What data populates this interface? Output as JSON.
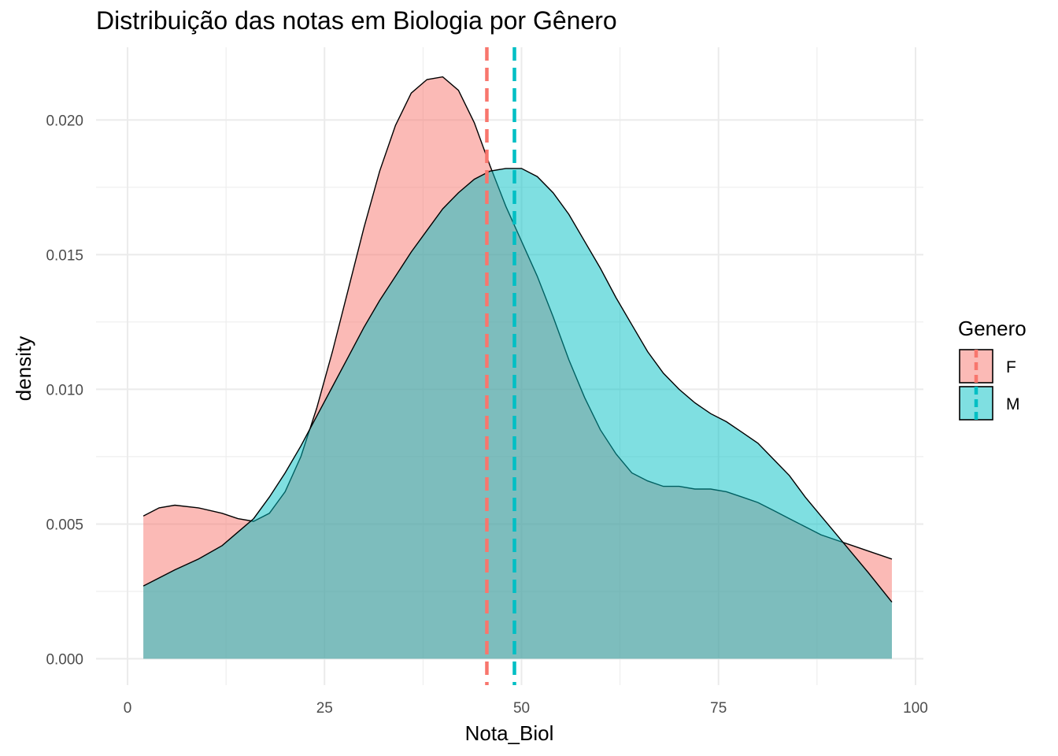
{
  "chart_data": {
    "type": "area",
    "title": "Distribuição das notas em Biologia por Gênero",
    "xlabel": "Nota_Biol",
    "ylabel": "density",
    "xlim": [
      -4,
      101
    ],
    "ylim": [
      -0.00098,
      0.0227
    ],
    "x_ticks": [
      0,
      25,
      50,
      75,
      100
    ],
    "x_minor": [
      12.5,
      37.5,
      62.5,
      87.5
    ],
    "y_ticks": [
      0.0,
      0.005,
      0.01,
      0.015,
      0.02
    ],
    "y_tick_labels": [
      "0.000",
      "0.005",
      "0.010",
      "0.015",
      "0.020"
    ],
    "y_minor": [
      0.0025,
      0.0075,
      0.0125,
      0.0175
    ],
    "grid": true,
    "legend_title": "Genero",
    "legend_position": "right",
    "series": [
      {
        "name": "F",
        "color": "#F8766D",
        "mean": 45.6,
        "x": [
          2,
          4,
          6,
          9,
          12,
          14,
          16,
          18,
          20,
          22,
          24,
          26,
          28,
          30,
          32,
          34,
          36,
          38,
          40,
          42,
          44,
          46,
          48,
          50,
          52,
          54,
          56,
          58,
          60,
          62,
          64,
          66,
          68,
          70,
          72,
          74,
          76,
          78,
          80,
          82,
          84,
          86,
          88,
          90,
          92,
          94,
          97
        ],
        "values": [
          0.0053,
          0.0056,
          0.0057,
          0.0056,
          0.0054,
          0.0052,
          0.0051,
          0.0054,
          0.0062,
          0.0075,
          0.0093,
          0.0114,
          0.0137,
          0.016,
          0.0181,
          0.0198,
          0.021,
          0.0215,
          0.0216,
          0.0211,
          0.0199,
          0.0183,
          0.0168,
          0.0155,
          0.0142,
          0.0127,
          0.0111,
          0.0097,
          0.0085,
          0.0076,
          0.0069,
          0.0066,
          0.0064,
          0.0064,
          0.0063,
          0.0063,
          0.0062,
          0.006,
          0.0058,
          0.0055,
          0.0052,
          0.0049,
          0.0046,
          0.0044,
          0.0042,
          0.004,
          0.0037
        ]
      },
      {
        "name": "M",
        "color": "#00BFC4",
        "mean": 49.1,
        "x": [
          2,
          4,
          6,
          9,
          12,
          14,
          16,
          18,
          20,
          22,
          24,
          26,
          28,
          30,
          32,
          34,
          36,
          38,
          40,
          42,
          44,
          46,
          48,
          50,
          52,
          54,
          56,
          58,
          60,
          62,
          64,
          66,
          68,
          70,
          72,
          74,
          76,
          78,
          80,
          82,
          84,
          86,
          88,
          90,
          92,
          94,
          97
        ],
        "values": [
          0.0027,
          0.003,
          0.0033,
          0.0037,
          0.0042,
          0.0047,
          0.0052,
          0.006,
          0.0069,
          0.0079,
          0.009,
          0.0101,
          0.0112,
          0.0123,
          0.0133,
          0.0142,
          0.0151,
          0.0159,
          0.0167,
          0.0173,
          0.0178,
          0.0181,
          0.0182,
          0.0182,
          0.0179,
          0.0173,
          0.0165,
          0.0155,
          0.0145,
          0.0134,
          0.0124,
          0.0114,
          0.0106,
          0.01,
          0.0095,
          0.0091,
          0.0088,
          0.0084,
          0.008,
          0.0074,
          0.0068,
          0.006,
          0.0053,
          0.0046,
          0.0039,
          0.0032,
          0.0021
        ]
      }
    ]
  }
}
